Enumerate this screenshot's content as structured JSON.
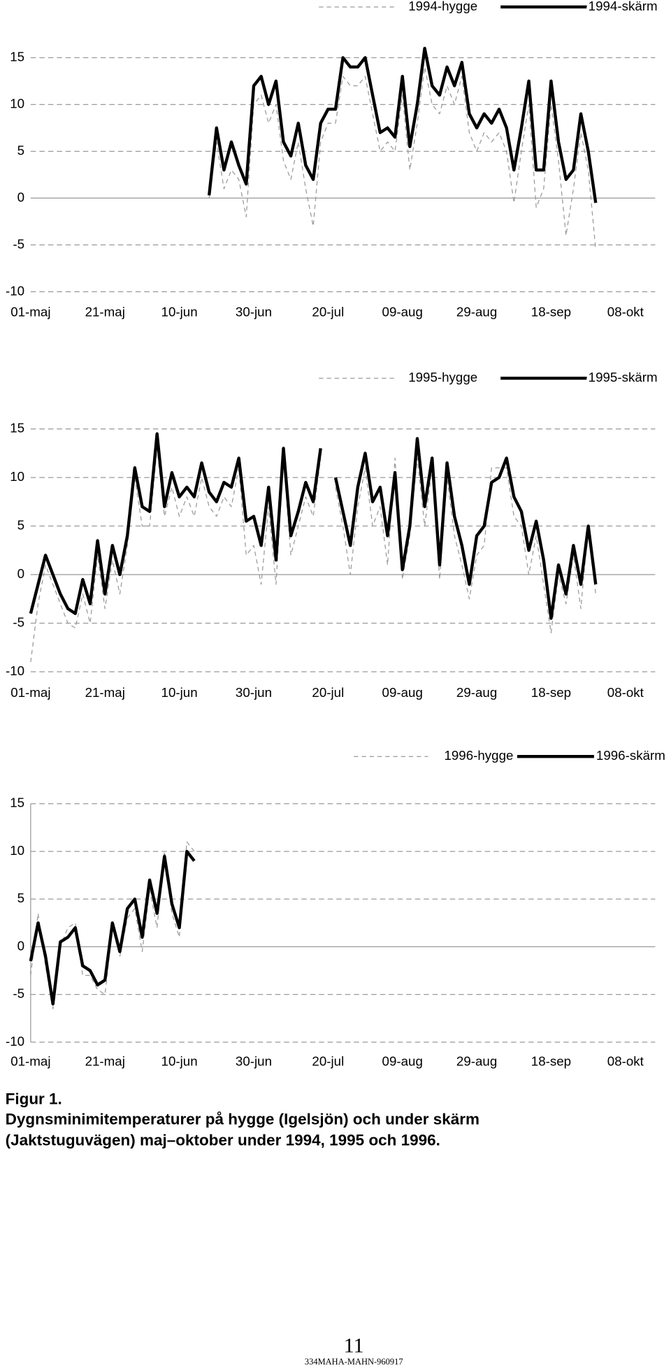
{
  "chart_data": [
    {
      "type": "line",
      "xlim": [
        0,
        168
      ],
      "ylim": [
        -10,
        15
      ],
      "yticks": [
        15,
        10,
        5,
        0,
        -5,
        -10
      ],
      "xticks": [
        {
          "value": 0,
          "label": "01-maj"
        },
        {
          "value": 20,
          "label": "21-maj"
        },
        {
          "value": 40,
          "label": "10-jun"
        },
        {
          "value": 60,
          "label": "30-jun"
        },
        {
          "value": 80,
          "label": "20-jul"
        },
        {
          "value": 100,
          "label": "09-aug"
        },
        {
          "value": 120,
          "label": "29-aug"
        },
        {
          "value": 140,
          "label": "18-sep"
        },
        {
          "value": 160,
          "label": "08-okt"
        }
      ],
      "grid": true,
      "y_axis_line": false,
      "x": [
        48,
        50,
        52,
        54,
        56,
        58,
        60,
        62,
        64,
        66,
        68,
        70,
        72,
        74,
        76,
        78,
        80,
        82,
        84,
        86,
        88,
        90,
        92,
        94,
        96,
        98,
        100,
        102,
        104,
        106,
        108,
        110,
        112,
        114,
        116,
        118,
        120,
        122,
        124,
        126,
        128,
        130,
        132,
        134,
        136,
        138,
        140,
        142,
        144,
        146,
        148,
        150,
        152
      ],
      "series": [
        {
          "name": "1994-hygge",
          "color": "#999999",
          "dashed": true,
          "width": 1,
          "values": [
            0,
            6,
            1,
            3,
            2,
            -2,
            10,
            11,
            8,
            10,
            4,
            2,
            6,
            1,
            -3,
            6,
            8,
            8,
            13,
            12,
            12,
            13,
            9,
            5,
            6,
            5,
            11,
            3,
            8,
            14,
            10,
            9,
            12,
            10,
            13,
            7,
            5,
            7,
            6,
            7,
            5,
            -0.5,
            5,
            10,
            -1,
            1,
            10,
            4,
            -4,
            1,
            7,
            3,
            -5.5
          ]
        },
        {
          "name": "1994-skärm",
          "color": "#000000",
          "dashed": false,
          "width": 3.5,
          "values": [
            0.3,
            7.5,
            3,
            6,
            3.5,
            1.5,
            12,
            13,
            10,
            12.5,
            6,
            4.5,
            8,
            3.5,
            2,
            8,
            9.5,
            9.5,
            15,
            14,
            14,
            15,
            11,
            7,
            7.5,
            6.5,
            13,
            5.5,
            10,
            16,
            12,
            11,
            14,
            12,
            14.5,
            9,
            7.5,
            9,
            8,
            9.5,
            7.5,
            3,
            7.5,
            12.5,
            3,
            3,
            12.5,
            6,
            2,
            3,
            9,
            5,
            -0.5
          ]
        }
      ]
    },
    {
      "type": "line",
      "xlim": [
        0,
        168
      ],
      "ylim": [
        -10,
        15
      ],
      "yticks": [
        15,
        10,
        5,
        0,
        -5,
        -10
      ],
      "xticks": [
        {
          "value": 0,
          "label": "01-maj"
        },
        {
          "value": 20,
          "label": "21-maj"
        },
        {
          "value": 40,
          "label": "10-jun"
        },
        {
          "value": 60,
          "label": "30-jun"
        },
        {
          "value": 80,
          "label": "20-jul"
        },
        {
          "value": 100,
          "label": "09-aug"
        },
        {
          "value": 120,
          "label": "29-aug"
        },
        {
          "value": 140,
          "label": "18-sep"
        },
        {
          "value": 160,
          "label": "08-okt"
        }
      ],
      "grid": true,
      "y_axis_line": false,
      "x": [
        0,
        2,
        4,
        6,
        8,
        10,
        12,
        14,
        16,
        18,
        20,
        22,
        24,
        26,
        28,
        30,
        32,
        34,
        36,
        38,
        40,
        42,
        44,
        46,
        48,
        50,
        52,
        54,
        56,
        58,
        60,
        62,
        64,
        66,
        68,
        70,
        72,
        74,
        76,
        78,
        80,
        82,
        84,
        86,
        88,
        90,
        92,
        94,
        96,
        98,
        100,
        102,
        104,
        106,
        108,
        110,
        112,
        114,
        116,
        118,
        120,
        122,
        124,
        126,
        128,
        130,
        132,
        134,
        136,
        138,
        140,
        142,
        144,
        146,
        148,
        150,
        152
      ],
      "series": [
        {
          "name": "1995-hygge",
          "color": "#999999",
          "dashed": true,
          "width": 1,
          "values": [
            -9,
            -3,
            1,
            -1,
            -3,
            -5,
            -5.5,
            -2,
            -5,
            2,
            -3.5,
            1.5,
            -2,
            3,
            10,
            5,
            5,
            13,
            6,
            9,
            6,
            8,
            6,
            10,
            7,
            6,
            8,
            7,
            11,
            2,
            3,
            -1,
            7,
            -1,
            12,
            2,
            5,
            8,
            6,
            12,
            null,
            9,
            5,
            0,
            7,
            11,
            5,
            7,
            1,
            12,
            -0.5,
            4,
            12,
            5,
            11,
            -0.5,
            10,
            4,
            1,
            -2.5,
            2,
            3,
            11,
            11,
            11,
            6,
            5,
            0,
            4,
            -1,
            -6,
            0,
            -3,
            2,
            -3.5,
            5,
            -2
          ]
        },
        {
          "name": "1995-skärm",
          "color": "#000000",
          "dashed": false,
          "width": 3.5,
          "values": [
            -4,
            -1,
            2,
            0,
            -2,
            -3.5,
            -4,
            -0.5,
            -3,
            3.5,
            -2,
            3,
            0,
            4,
            11,
            7,
            6.5,
            14.5,
            7,
            10.5,
            8,
            9,
            8,
            11.5,
            8.5,
            7.5,
            9.5,
            9,
            12,
            5.5,
            6,
            3,
            9,
            1.5,
            13,
            4,
            6.5,
            9.5,
            7.5,
            13,
            null,
            10,
            6.5,
            3,
            9,
            12.5,
            7.5,
            9,
            4,
            10.5,
            0.5,
            5,
            14,
            7,
            12,
            1,
            11.5,
            6,
            3,
            -1,
            4,
            5,
            9.5,
            10,
            12,
            8,
            6.5,
            2.5,
            5.5,
            1.5,
            -4.5,
            1,
            -2,
            3,
            -1,
            5,
            -1
          ]
        }
      ]
    },
    {
      "type": "line",
      "xlim": [
        0,
        168
      ],
      "ylim": [
        -10,
        15
      ],
      "yticks": [
        15,
        10,
        5,
        0,
        -5,
        -10
      ],
      "xticks": [
        {
          "value": 0,
          "label": "01-maj"
        },
        {
          "value": 20,
          "label": "21-maj"
        },
        {
          "value": 40,
          "label": "10-jun"
        },
        {
          "value": 60,
          "label": "30-jun"
        },
        {
          "value": 80,
          "label": "20-jul"
        },
        {
          "value": 100,
          "label": "09-aug"
        },
        {
          "value": 120,
          "label": "29-aug"
        },
        {
          "value": 140,
          "label": "18-sep"
        },
        {
          "value": 160,
          "label": "08-okt"
        }
      ],
      "grid": true,
      "y_axis_line": true,
      "x": [
        0,
        2,
        4,
        6,
        8,
        10,
        12,
        14,
        16,
        18,
        20,
        22,
        24,
        26,
        28,
        30,
        32,
        34,
        36,
        38,
        40,
        42,
        44
      ],
      "series": [
        {
          "name": "1996-hygge",
          "color": "#999999",
          "dashed": true,
          "width": 1,
          "values": [
            -3,
            3.5,
            -2,
            -6.5,
            0,
            2,
            2.5,
            -3,
            -3,
            -4.5,
            -5,
            2,
            -1,
            3,
            4,
            -0.5,
            6,
            2,
            10,
            3.5,
            1,
            11,
            10
          ]
        },
        {
          "name": "1996-skärm",
          "color": "#000000",
          "dashed": false,
          "width": 3.5,
          "values": [
            -1.5,
            2.5,
            -1,
            -6,
            0.5,
            1,
            2,
            -2,
            -2.5,
            -4,
            -3.5,
            2.5,
            -0.5,
            4,
            5,
            1,
            7,
            3.5,
            9.5,
            4.5,
            2,
            10,
            9
          ]
        }
      ]
    }
  ],
  "caption": {
    "label": "Figur 1.",
    "lines": [
      "Dygnsminimitemperaturer på hygge (Igelsjön) och under skärm",
      "(Jaktstuguvägen) maj–oktober under 1994, 1995 och 1996."
    ]
  },
  "footer": {
    "page": "11",
    "code": "334MAHA-MAHN-960917"
  }
}
